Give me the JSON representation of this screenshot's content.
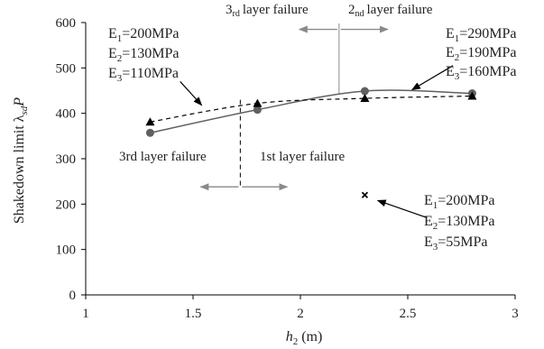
{
  "chart_data": {
    "type": "line",
    "xlabel": "h",
    "xlabel_sub": "2",
    "xlabel_unit": " (m)",
    "ylabel": "Shakedown limit λ",
    "ylabel_sub": "sd",
    "ylabel_tail": "P",
    "xlim": [
      1,
      3
    ],
    "ylim": [
      0,
      600
    ],
    "x_ticks": [
      1,
      1.5,
      2,
      2.5,
      3
    ],
    "x_tick_labels": [
      "1",
      "1.5",
      "2",
      "2.5",
      "3"
    ],
    "y_ticks": [
      0,
      100,
      200,
      300,
      400,
      500,
      600
    ],
    "y_tick_labels": [
      "0",
      "100",
      "200",
      "300",
      "400",
      "500",
      "600"
    ],
    "grid": false,
    "series": [
      {
        "marker": "circle",
        "line": "solid",
        "color": "#606060",
        "x": [
          1.3,
          1.8,
          2.3,
          2.8
        ],
        "y": [
          357,
          408,
          449,
          444
        ],
        "label_lines": [
          [
            "E",
            "1",
            "=290MPa"
          ],
          [
            "E",
            "2",
            "=190MPa"
          ],
          [
            "E",
            "3",
            "=160MPa"
          ]
        ]
      },
      {
        "marker": "triangle",
        "line": "dashed",
        "color": "#000000",
        "x": [
          1.3,
          1.8,
          2.3,
          2.8
        ],
        "y": [
          381,
          422,
          433,
          438
        ],
        "label_lines": [
          [
            "E",
            "1",
            "=200MPa"
          ],
          [
            "E",
            "2",
            "=130MPa"
          ],
          [
            "E",
            "3",
            "=110MPa"
          ]
        ]
      },
      {
        "marker": "cross",
        "line": "none",
        "color": "#000000",
        "x": [
          2.3
        ],
        "y": [
          220
        ],
        "label_lines": [
          [
            "E",
            "1",
            "=200MPa"
          ],
          [
            "E",
            "2",
            "=130MPa"
          ],
          [
            "E",
            "3",
            "=55MPa"
          ]
        ]
      }
    ],
    "annotations": {
      "left_region_label": "3rd layer failure",
      "right_region_label": "1st layer failure",
      "top_left_label": "layer failure",
      "top_left_prefix": "3",
      "top_left_suffix": "rd",
      "top_right_label": "layer failure",
      "top_right_prefix": "2",
      "top_right_suffix": "nd",
      "lower_divider_x": 1.72,
      "upper_divider_x": 2.18
    },
    "colors": {
      "axis": "#000000",
      "solid_series": "#606060",
      "dashed_series": "#000000",
      "arrow_gray": "#8a8a8a"
    }
  }
}
